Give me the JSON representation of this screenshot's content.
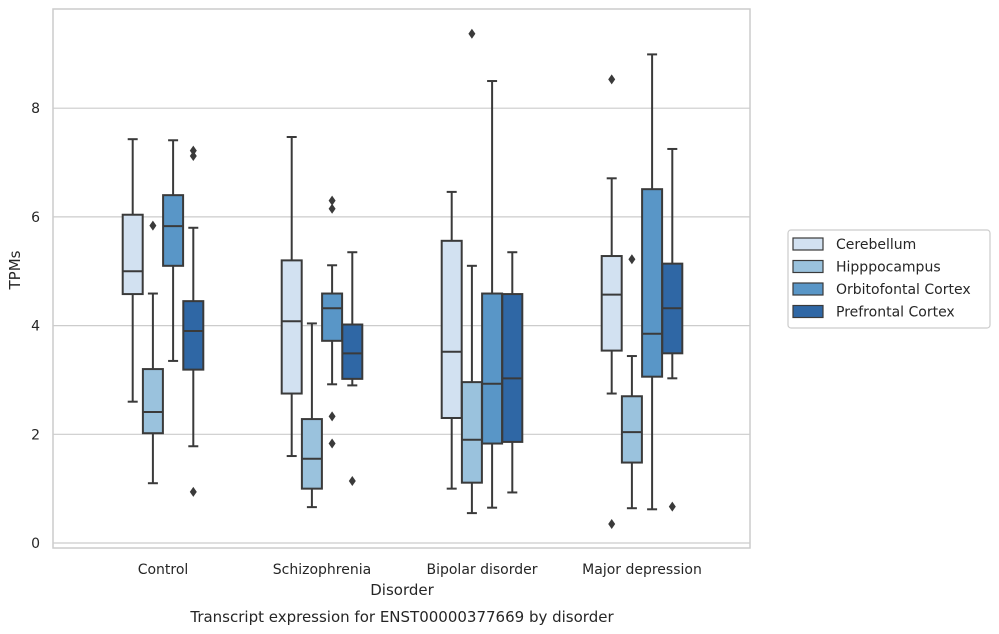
{
  "chart_data": {
    "type": "boxplot",
    "title": "",
    "caption": "Transcript expression for ENST00000377669 by disorder",
    "xlabel": "Disorder",
    "ylabel": "TPMs",
    "ylim": [
      -0.1,
      9.9
    ],
    "yticks": [
      0,
      2,
      4,
      6,
      8
    ],
    "grid": "horizontal",
    "legend_position": "right",
    "categories": [
      "Control",
      "Schizophrenia",
      "Bipolar disorder",
      "Major depression"
    ],
    "series": [
      {
        "name": "Cerebellum",
        "color": "#d2e1f1",
        "boxes": [
          {
            "whislo": 2.6,
            "q1": 4.58,
            "med": 5.0,
            "q3": 6.04,
            "whishi": 7.43,
            "fliers": []
          },
          {
            "whislo": 1.6,
            "q1": 2.75,
            "med": 4.08,
            "q3": 5.2,
            "whishi": 7.47,
            "fliers": []
          },
          {
            "whislo": 1.0,
            "q1": 2.3,
            "med": 3.52,
            "q3": 5.56,
            "whishi": 6.46,
            "fliers": []
          },
          {
            "whislo": 2.75,
            "q1": 3.54,
            "med": 4.57,
            "q3": 5.28,
            "whishi": 6.71,
            "fliers": [
              8.53,
              0.35
            ]
          }
        ]
      },
      {
        "name": "Hipppocampus",
        "color": "#9ac2dd",
        "boxes": [
          {
            "whislo": 1.1,
            "q1": 2.02,
            "med": 2.41,
            "q3": 3.2,
            "whishi": 4.59,
            "fliers": [
              5.84
            ]
          },
          {
            "whislo": 0.66,
            "q1": 1.0,
            "med": 1.55,
            "q3": 2.28,
            "whishi": 4.04,
            "fliers": []
          },
          {
            "whislo": 0.55,
            "q1": 1.11,
            "med": 1.9,
            "q3": 2.96,
            "whishi": 5.1,
            "fliers": [
              9.37
            ]
          },
          {
            "whislo": 0.64,
            "q1": 1.48,
            "med": 2.04,
            "q3": 2.7,
            "whishi": 3.44,
            "fliers": [
              5.22
            ]
          }
        ]
      },
      {
        "name": "Orbitofontal Cortex",
        "color": "#5996c7",
        "boxes": [
          {
            "whislo": 3.35,
            "q1": 5.1,
            "med": 5.83,
            "q3": 6.4,
            "whishi": 7.41,
            "fliers": []
          },
          {
            "whislo": 2.92,
            "q1": 3.72,
            "med": 4.32,
            "q3": 4.59,
            "whishi": 5.11,
            "fliers": [
              6.3,
              6.15,
              2.33,
              1.83
            ]
          },
          {
            "whislo": 0.65,
            "q1": 1.83,
            "med": 2.93,
            "q3": 4.59,
            "whishi": 8.5,
            "fliers": []
          },
          {
            "whislo": 0.62,
            "q1": 3.06,
            "med": 3.85,
            "q3": 6.51,
            "whishi": 8.99,
            "fliers": []
          }
        ]
      },
      {
        "name": "Prefrontal Cortex",
        "color": "#2f67a5",
        "boxes": [
          {
            "whislo": 1.78,
            "q1": 3.19,
            "med": 3.9,
            "q3": 4.45,
            "whishi": 5.8,
            "fliers": [
              7.22,
              7.12,
              0.94
            ]
          },
          {
            "whislo": 2.9,
            "q1": 3.02,
            "med": 3.49,
            "q3": 4.02,
            "whishi": 5.35,
            "fliers": [
              1.14
            ]
          },
          {
            "whislo": 0.93,
            "q1": 1.86,
            "med": 3.03,
            "q3": 4.58,
            "whishi": 5.35,
            "fliers": []
          },
          {
            "whislo": 3.03,
            "q1": 3.49,
            "med": 4.32,
            "q3": 5.14,
            "whishi": 7.25,
            "fliers": [
              0.67
            ]
          }
        ]
      }
    ]
  }
}
